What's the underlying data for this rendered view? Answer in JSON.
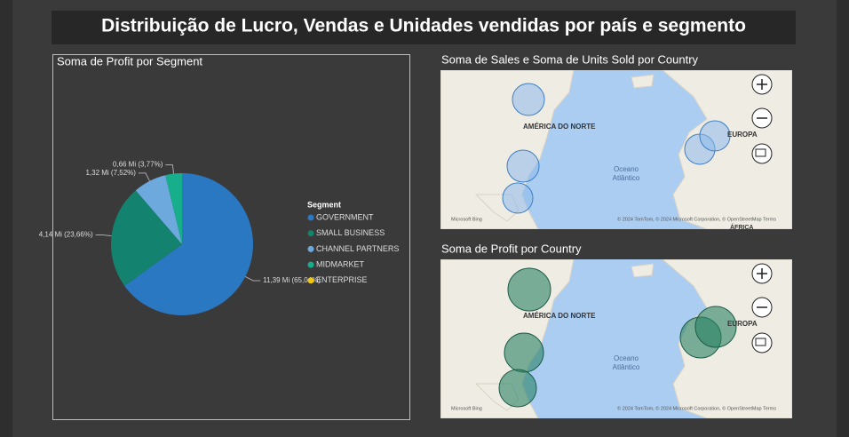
{
  "header": {
    "title": "Distribuição de Lucro, Vendas e Unidades vendidas por país e segmento"
  },
  "chart_data": [
    {
      "type": "pie",
      "title": "Soma de Profit por Segment",
      "legend_title": "Segment",
      "categories": [
        "GOVERNMENT",
        "SMALL BUSINESS",
        "CHANNEL PARTNERS",
        "MIDMARKET",
        "ENTERPRISE"
      ],
      "values": [
        11.39,
        4.14,
        1.32,
        0.66,
        null
      ],
      "value_labels": [
        "11,39 Mi (65,04%)",
        "4,14 Mi (23,66%)",
        "1,32 Mi (7,52%)",
        "0,66 Mi (3,77%)",
        null
      ],
      "colors": [
        "#2b78c2",
        "#13826e",
        "#6ea9de",
        "#17ae8c",
        "#f2c80f"
      ]
    }
  ],
  "maps": [
    {
      "title": "Soma de Sales e Soma de Units Sold por Country",
      "labels": [
        "AMÉRICA DO NORTE",
        "EUROPA",
        "Oceano",
        "Atlântico",
        "ÁFRICA"
      ],
      "brand": "Microsoft Bing",
      "attribution": "© 2024 TomTom, © 2024 Microsoft Corporation, © OpenStreetMap  Terms"
    },
    {
      "title": "Soma de Profit por Country",
      "labels": [
        "AMÉRICA DO NORTE",
        "EUROPA",
        "Oceano",
        "Atlântico"
      ],
      "brand": "Microsoft Bing",
      "attribution": "© 2024 TomTom, © 2024 Microsoft Corporation, © OpenStreetMap  Terms"
    }
  ]
}
